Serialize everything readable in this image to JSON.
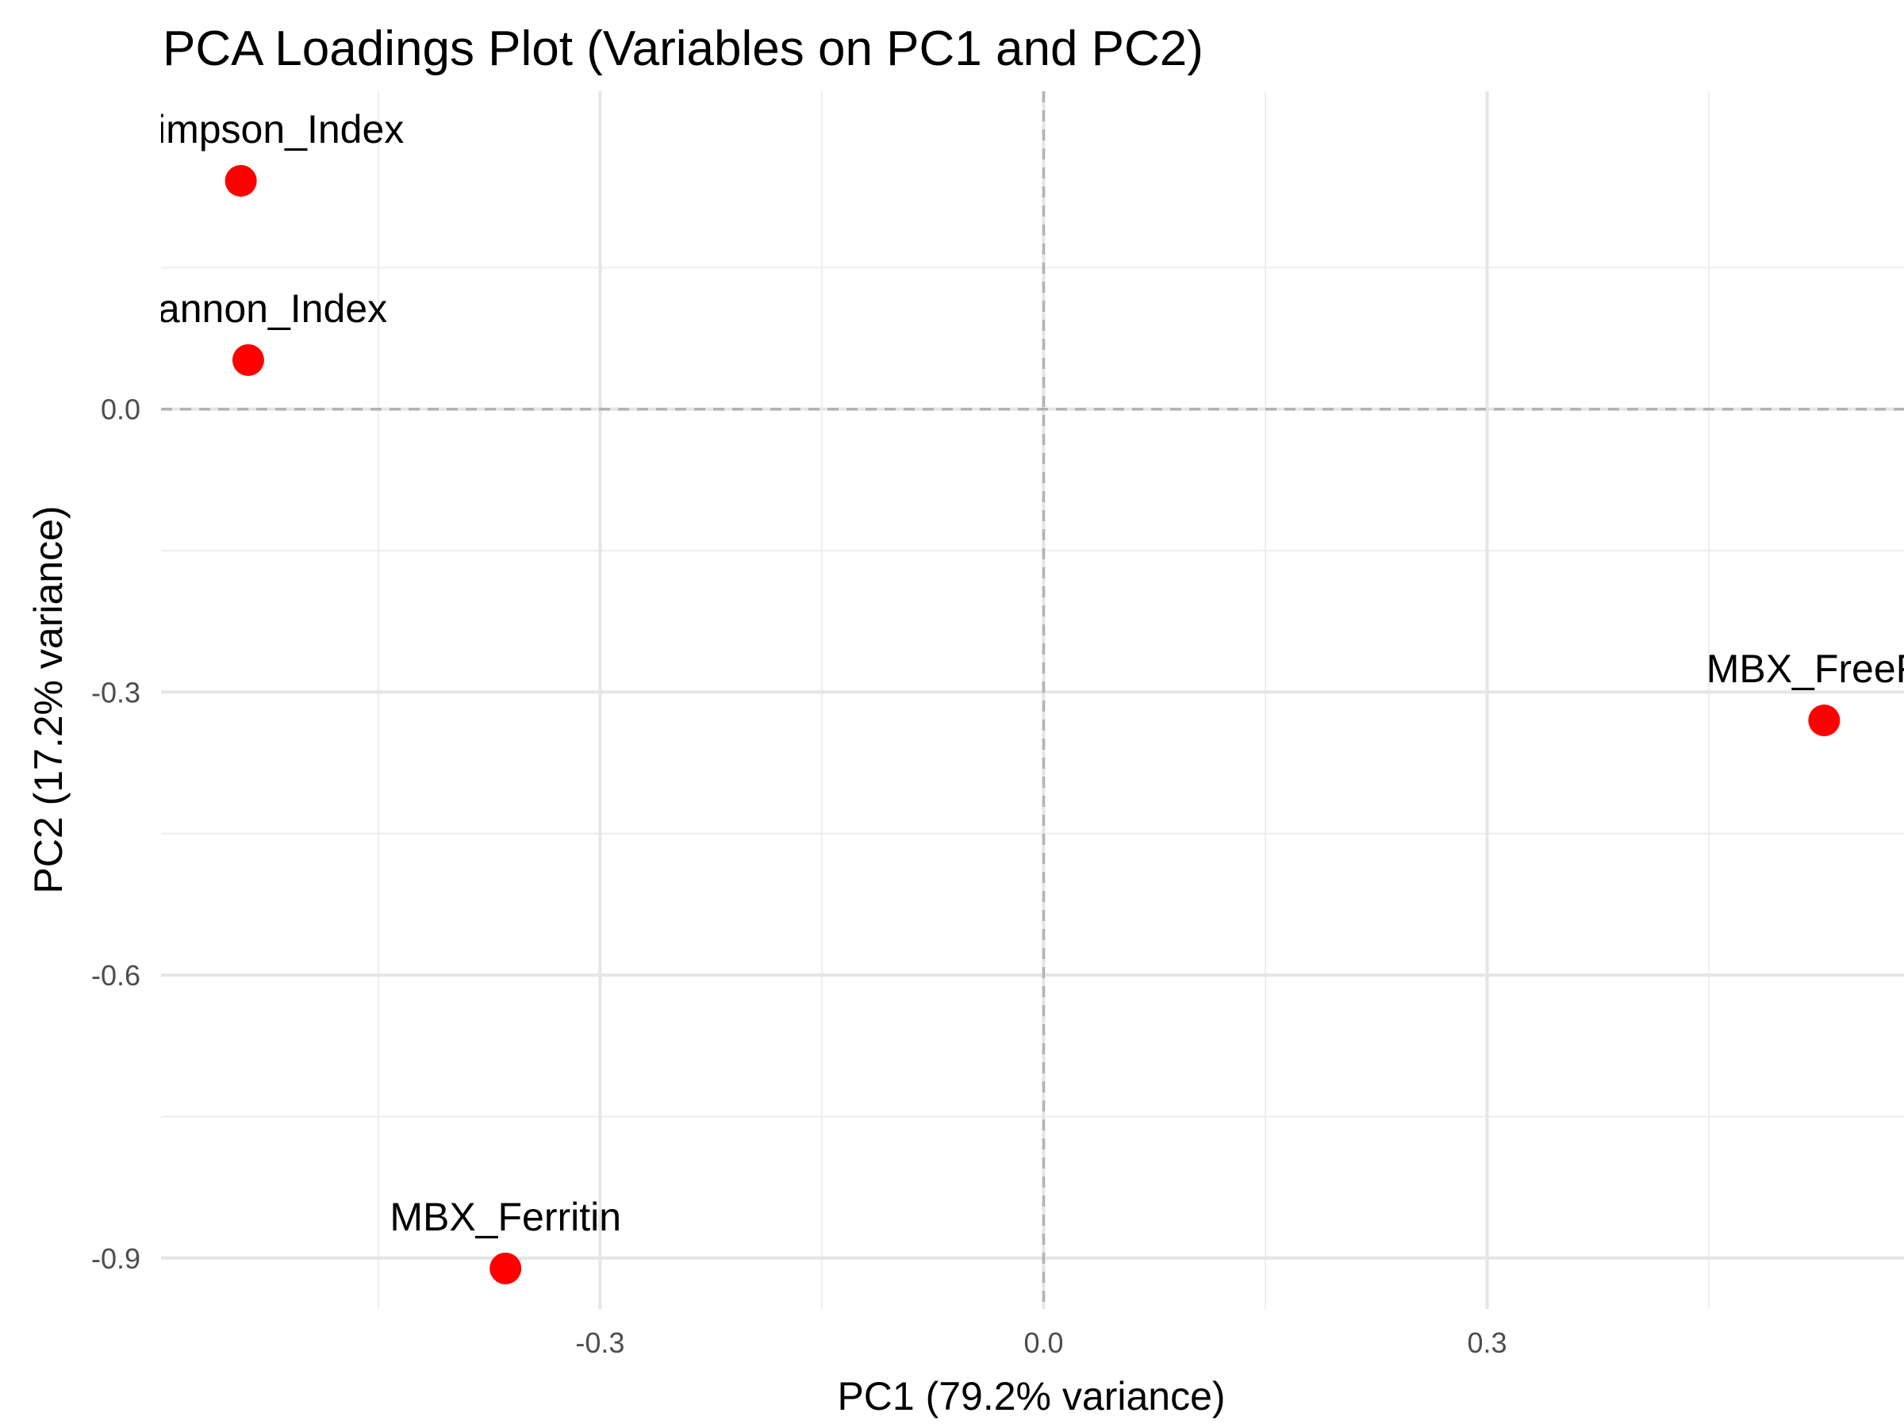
{
  "chart_data": {
    "type": "scatter",
    "title": "PCA Loadings Plot (Variables on PC1 and PC2)",
    "xlabel": "PC1 (79.2% variance)",
    "ylabel": "PC2 (17.2% variance)",
    "xlim": [
      -0.597,
      0.582
    ],
    "ylim": [
      -0.954,
      0.337
    ],
    "x_ticks": [
      -0.3,
      0.0,
      0.3
    ],
    "x_tick_labels": [
      "-0.3",
      "0.0",
      "0.3"
    ],
    "y_ticks": [
      0.0,
      -0.3,
      -0.6,
      -0.9
    ],
    "y_tick_labels": [
      "0.0",
      "-0.3",
      "-0.6",
      "-0.9"
    ],
    "grid": true,
    "reference_lines": {
      "x": 0,
      "y": 0,
      "style": "dashed"
    },
    "point_color": "#ff0000",
    "points": [
      {
        "label": "InvSimpson_Index",
        "x": -0.543,
        "y": 0.242
      },
      {
        "label": "Shannon_Index",
        "x": -0.538,
        "y": 0.052
      },
      {
        "label": "MBX_FreeFe",
        "x": 0.528,
        "y": -0.33
      },
      {
        "label": "MBX_Ferritin",
        "x": -0.364,
        "y": -0.911
      }
    ]
  }
}
